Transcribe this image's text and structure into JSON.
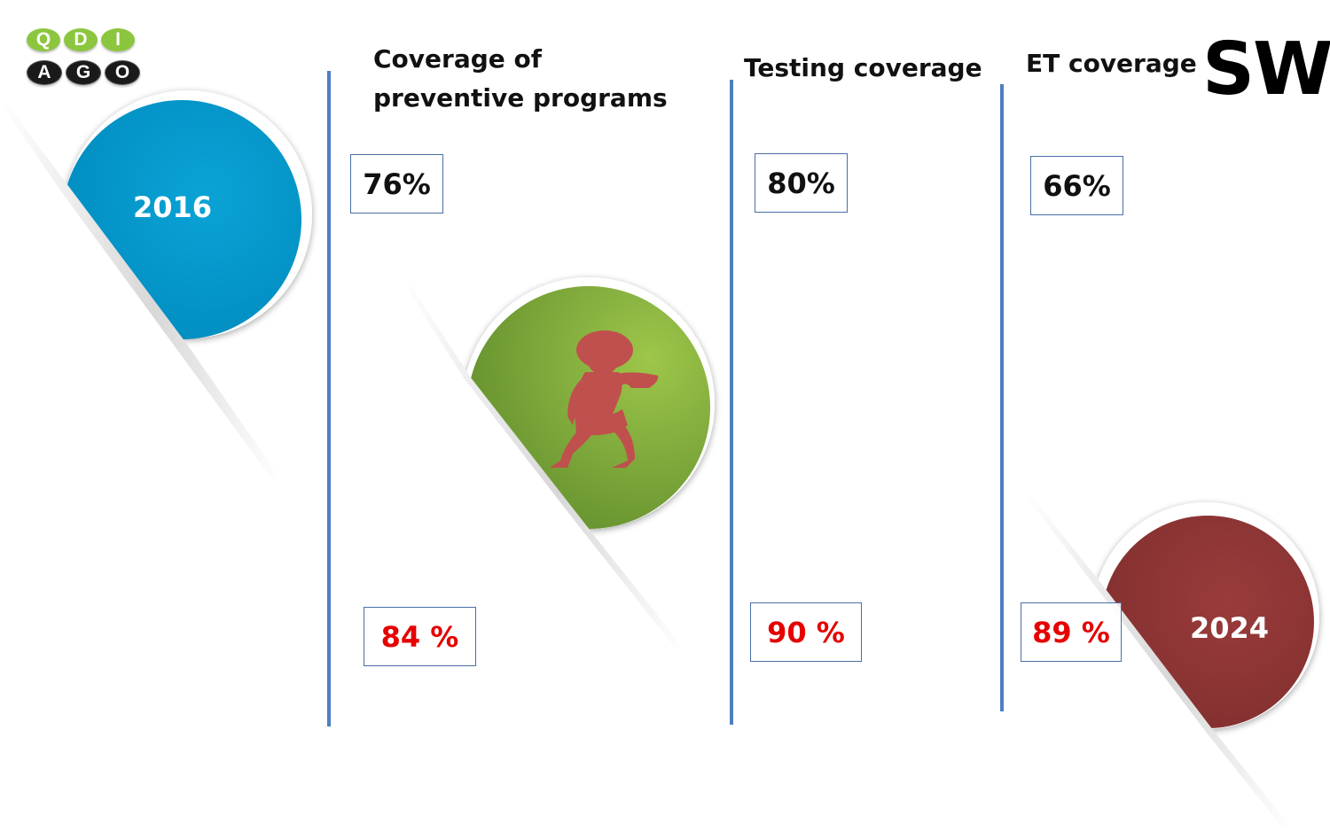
{
  "logo": {
    "top_letters": [
      "Q",
      "D",
      "I"
    ],
    "bottom_letters": [
      "A",
      "G",
      "O"
    ]
  },
  "badge": "SW",
  "years": {
    "start": "2016",
    "end": "2024"
  },
  "columns": [
    {
      "header_line1": "Coverage of",
      "header_line2": "preventive programs",
      "value_2016": "76%",
      "value_2024": "84 %"
    },
    {
      "header": "Testing coverage",
      "value_2016": "80%",
      "value_2024": "90 %"
    },
    {
      "header": "ET coverage",
      "value_2016": "66%",
      "value_2024": "89 %"
    }
  ],
  "colors": {
    "circle_2016": "#0099cc",
    "circle_middle": "#7fae3a",
    "circle_2024": "#8e3535",
    "silhouette": "#c0504d",
    "divider": "#4f7fbf",
    "value_2024_text": "#e60000"
  },
  "icons": {
    "middle_circle_icon": "woman-silhouette-icon"
  }
}
